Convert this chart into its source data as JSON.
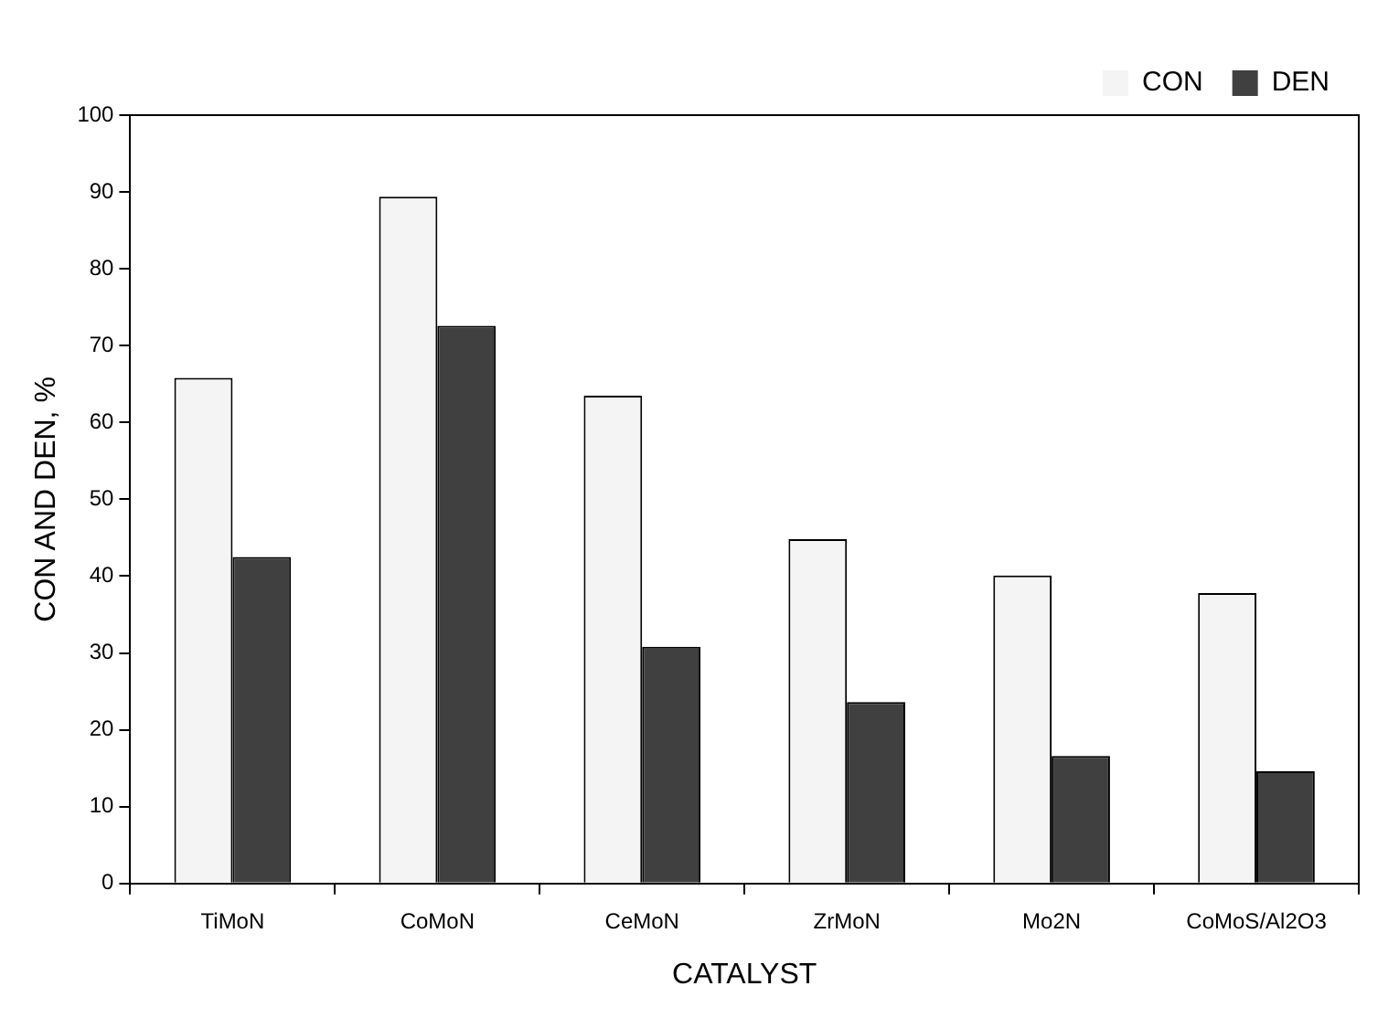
{
  "chart_data": {
    "type": "bar",
    "xlabel": "CATALYST",
    "ylabel": "CON AND DEN, %",
    "categories": [
      "TiMoN",
      "CoMoN",
      "CeMoN",
      "ZrMoN",
      "Mo2N",
      "CoMoS/Al2O3"
    ],
    "series": [
      {
        "name": "CON",
        "color": "#f4f4f4",
        "values": [
          65.8,
          89.4,
          63.5,
          44.8,
          40.1,
          37.8
        ]
      },
      {
        "name": "DEN",
        "color": "#404040",
        "values": [
          42.5,
          72.6,
          30.8,
          23.6,
          16.6,
          14.6
        ]
      }
    ],
    "ylim": [
      0,
      100
    ],
    "yticks": [
      0,
      10,
      20,
      30,
      40,
      50,
      60,
      70,
      80,
      90,
      100
    ],
    "grid": false,
    "legend": "top right"
  }
}
